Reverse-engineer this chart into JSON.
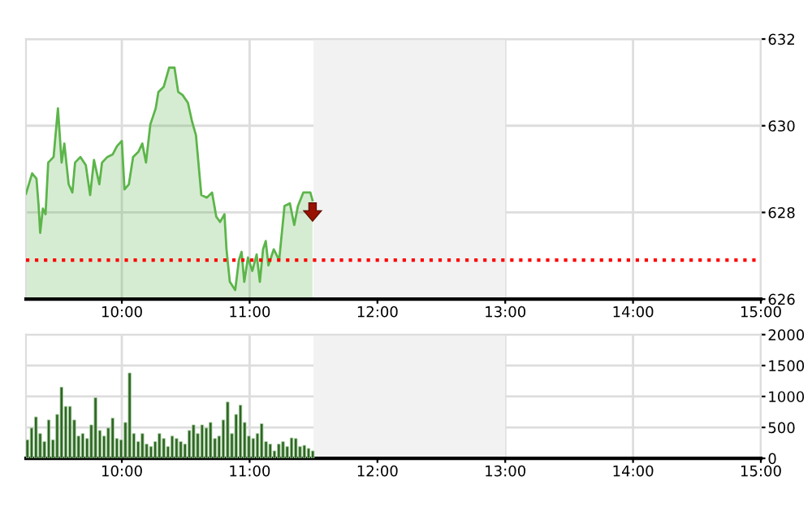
{
  "chart_data": [
    {
      "type": "area",
      "color": "#5cb54a",
      "x": [
        9.25,
        9.298,
        9.332,
        9.349,
        9.361,
        9.382,
        9.403,
        9.424,
        9.466,
        9.5,
        9.529,
        9.55,
        9.584,
        9.613,
        9.634,
        9.676,
        9.718,
        9.752,
        9.782,
        9.824,
        9.845,
        9.887,
        9.929,
        9.962,
        10.0,
        10.021,
        10.055,
        10.088,
        10.13,
        10.16,
        10.189,
        10.223,
        10.265,
        10.286,
        10.328,
        10.37,
        10.412,
        10.441,
        10.475,
        10.517,
        10.55,
        10.58,
        10.622,
        10.664,
        10.706,
        10.739,
        10.769,
        10.803,
        10.819,
        10.845,
        10.887,
        10.916,
        10.937,
        10.958,
        10.987,
        11.021,
        11.055,
        11.08,
        11.105,
        11.126,
        11.147,
        11.189,
        11.231,
        11.273,
        11.315,
        11.349,
        11.378,
        11.42,
        11.475,
        11.492
      ],
      "values": [
        628.43,
        628.9,
        628.78,
        628.15,
        627.53,
        628.09,
        627.96,
        629.15,
        629.28,
        630.4,
        629.15,
        629.59,
        628.65,
        628.46,
        629.15,
        629.28,
        629.09,
        628.4,
        629.21,
        628.65,
        629.15,
        629.28,
        629.34,
        629.53,
        629.65,
        628.53,
        628.65,
        629.28,
        629.4,
        629.59,
        629.15,
        630.03,
        630.4,
        630.78,
        630.9,
        631.34,
        631.34,
        630.78,
        630.71,
        630.53,
        630.09,
        629.78,
        628.4,
        628.34,
        628.46,
        627.9,
        627.78,
        627.96,
        627.15,
        626.4,
        626.21,
        626.9,
        627.09,
        626.4,
        626.96,
        626.65,
        627.03,
        626.4,
        627.15,
        627.34,
        626.78,
        627.15,
        626.9,
        628.15,
        628.21,
        627.71,
        628.15,
        628.46,
        628.46,
        628.28
      ],
      "xlim": [
        9.25,
        15
      ],
      "xticks": [
        {
          "value": 10,
          "label": "10:00"
        },
        {
          "value": 11,
          "label": "11:00"
        },
        {
          "value": 12,
          "label": "12:00"
        },
        {
          "value": 13,
          "label": "13:00"
        },
        {
          "value": 14,
          "label": "14:00"
        },
        {
          "value": 15,
          "label": "15:00"
        }
      ],
      "ylim": [
        626,
        632
      ],
      "yticks": [
        626,
        628,
        630,
        632
      ],
      "grid": true,
      "ref_lines": [
        {
          "axis": "y",
          "value": 626.9,
          "color": "#ff0000",
          "line_style": "dotted"
        }
      ],
      "bands": [
        {
          "axis": "x",
          "from": 11.5,
          "to": 13,
          "color": "#f2f2f2"
        }
      ]
    },
    {
      "type": "bar",
      "color": "#2e6624",
      "x": [
        9.25,
        9.283,
        9.317,
        9.35,
        9.383,
        9.417,
        9.45,
        9.483,
        9.517,
        9.55,
        9.583,
        9.617,
        9.65,
        9.683,
        9.717,
        9.75,
        9.783,
        9.817,
        9.85,
        9.883,
        9.917,
        9.95,
        9.983,
        10.017,
        10.05,
        10.083,
        10.117,
        10.15,
        10.183,
        10.217,
        10.25,
        10.283,
        10.317,
        10.35,
        10.383,
        10.417,
        10.45,
        10.483,
        10.517,
        10.55,
        10.583,
        10.617,
        10.65,
        10.683,
        10.717,
        10.75,
        10.783,
        10.817,
        10.85,
        10.883,
        10.917,
        10.95,
        10.983,
        11.017,
        11.05,
        11.083,
        11.117,
        11.15,
        11.183,
        11.217,
        11.25,
        11.283,
        11.317,
        11.35,
        11.383,
        11.417,
        11.45,
        11.483
      ],
      "values": [
        300,
        490,
        670,
        400,
        270,
        620,
        300,
        710,
        1150,
        840,
        840,
        620,
        360,
        400,
        320,
        540,
        980,
        450,
        360,
        490,
        650,
        320,
        300,
        580,
        1380,
        400,
        270,
        400,
        230,
        190,
        270,
        400,
        320,
        190,
        360,
        320,
        270,
        230,
        450,
        540,
        400,
        540,
        490,
        580,
        320,
        360,
        620,
        910,
        400,
        710,
        860,
        580,
        360,
        320,
        400,
        560,
        270,
        230,
        120,
        230,
        270,
        190,
        330,
        320,
        190,
        210,
        160,
        120
      ],
      "xlim": [
        9.25,
        15
      ],
      "xticks": [
        {
          "value": 10,
          "label": "10:00"
        },
        {
          "value": 11,
          "label": "11:00"
        },
        {
          "value": 12,
          "label": "12:00"
        },
        {
          "value": 13,
          "label": "13:00"
        },
        {
          "value": 14,
          "label": "14:00"
        },
        {
          "value": 15,
          "label": "15:00"
        }
      ],
      "ylim": [
        0,
        2000
      ],
      "yticks": [
        0,
        500,
        1000,
        1500,
        2000
      ],
      "grid": true,
      "bands": [
        {
          "axis": "x",
          "from": 11.5,
          "to": 13,
          "color": "#f2f2f2"
        }
      ]
    }
  ]
}
